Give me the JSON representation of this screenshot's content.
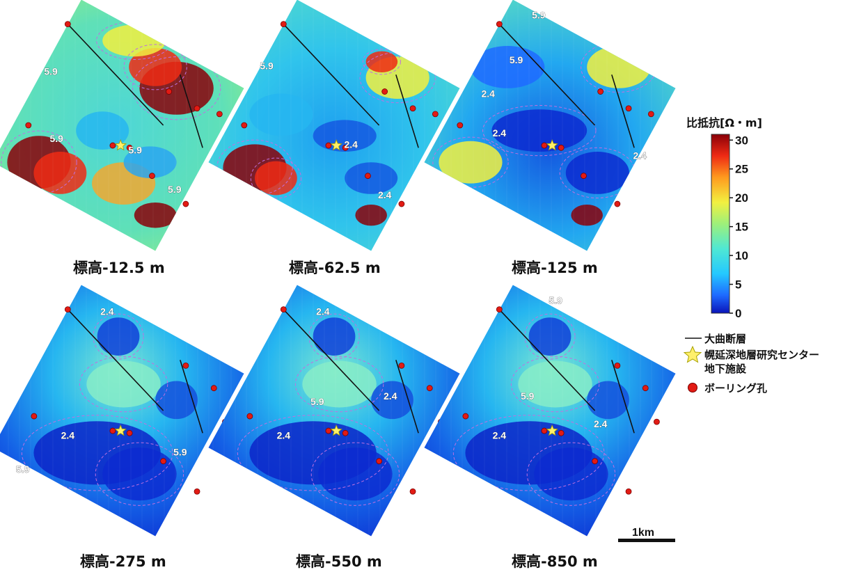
{
  "panels": [
    {
      "label": "標高-12.5 m",
      "contour_labels": [
        "5.9",
        "5.9",
        "5.9",
        "5.9"
      ],
      "theme": "high"
    },
    {
      "label": "標高-62.5 m",
      "contour_labels": [
        "5.9",
        "2.4",
        "2.4"
      ],
      "theme": "mid"
    },
    {
      "label": "標高-125 m",
      "contour_labels": [
        "5.9",
        "5.9",
        "2.4",
        "2.4",
        "2.4"
      ],
      "theme": "midlow"
    },
    {
      "label": "標高-275 m",
      "contour_labels": [
        "2.4",
        "2.4",
        "5.9",
        "5.9"
      ],
      "theme": "low"
    },
    {
      "label": "標高-550 m",
      "contour_labels": [
        "2.4",
        "5.9",
        "2.4",
        "2.4"
      ],
      "theme": "low"
    },
    {
      "label": "標高-850 m",
      "contour_labels": [
        "5.9",
        "5.9",
        "2.4",
        "2.4"
      ],
      "theme": "low"
    }
  ],
  "colorbar": {
    "title": "比抵抗[Ω・m]",
    "min": 0,
    "max": 31,
    "ticks": [
      "0",
      "5",
      "10",
      "15",
      "20",
      "25",
      "30"
    ],
    "tick_values": [
      0,
      5,
      10,
      15,
      20,
      25,
      30
    ],
    "colors": [
      "#0a14b8",
      "#1e6aff",
      "#24c8ff",
      "#4fe8d4",
      "#9ef07a",
      "#f2f040",
      "#ff9a1e",
      "#ee2a14",
      "#8a0008"
    ]
  },
  "legend": {
    "fault": "大曲断層",
    "facility_line1": "幌延深地層研究センター",
    "facility_line2": "地下施設",
    "borehole": "ボーリング孔",
    "fault_color": "#111111",
    "facility_color": "#fff06a",
    "borehole_color": "#e21b14"
  },
  "scale_bar": {
    "label": "1km"
  },
  "icons": {
    "facility": "star-icon",
    "borehole": "red-dot-icon"
  }
}
